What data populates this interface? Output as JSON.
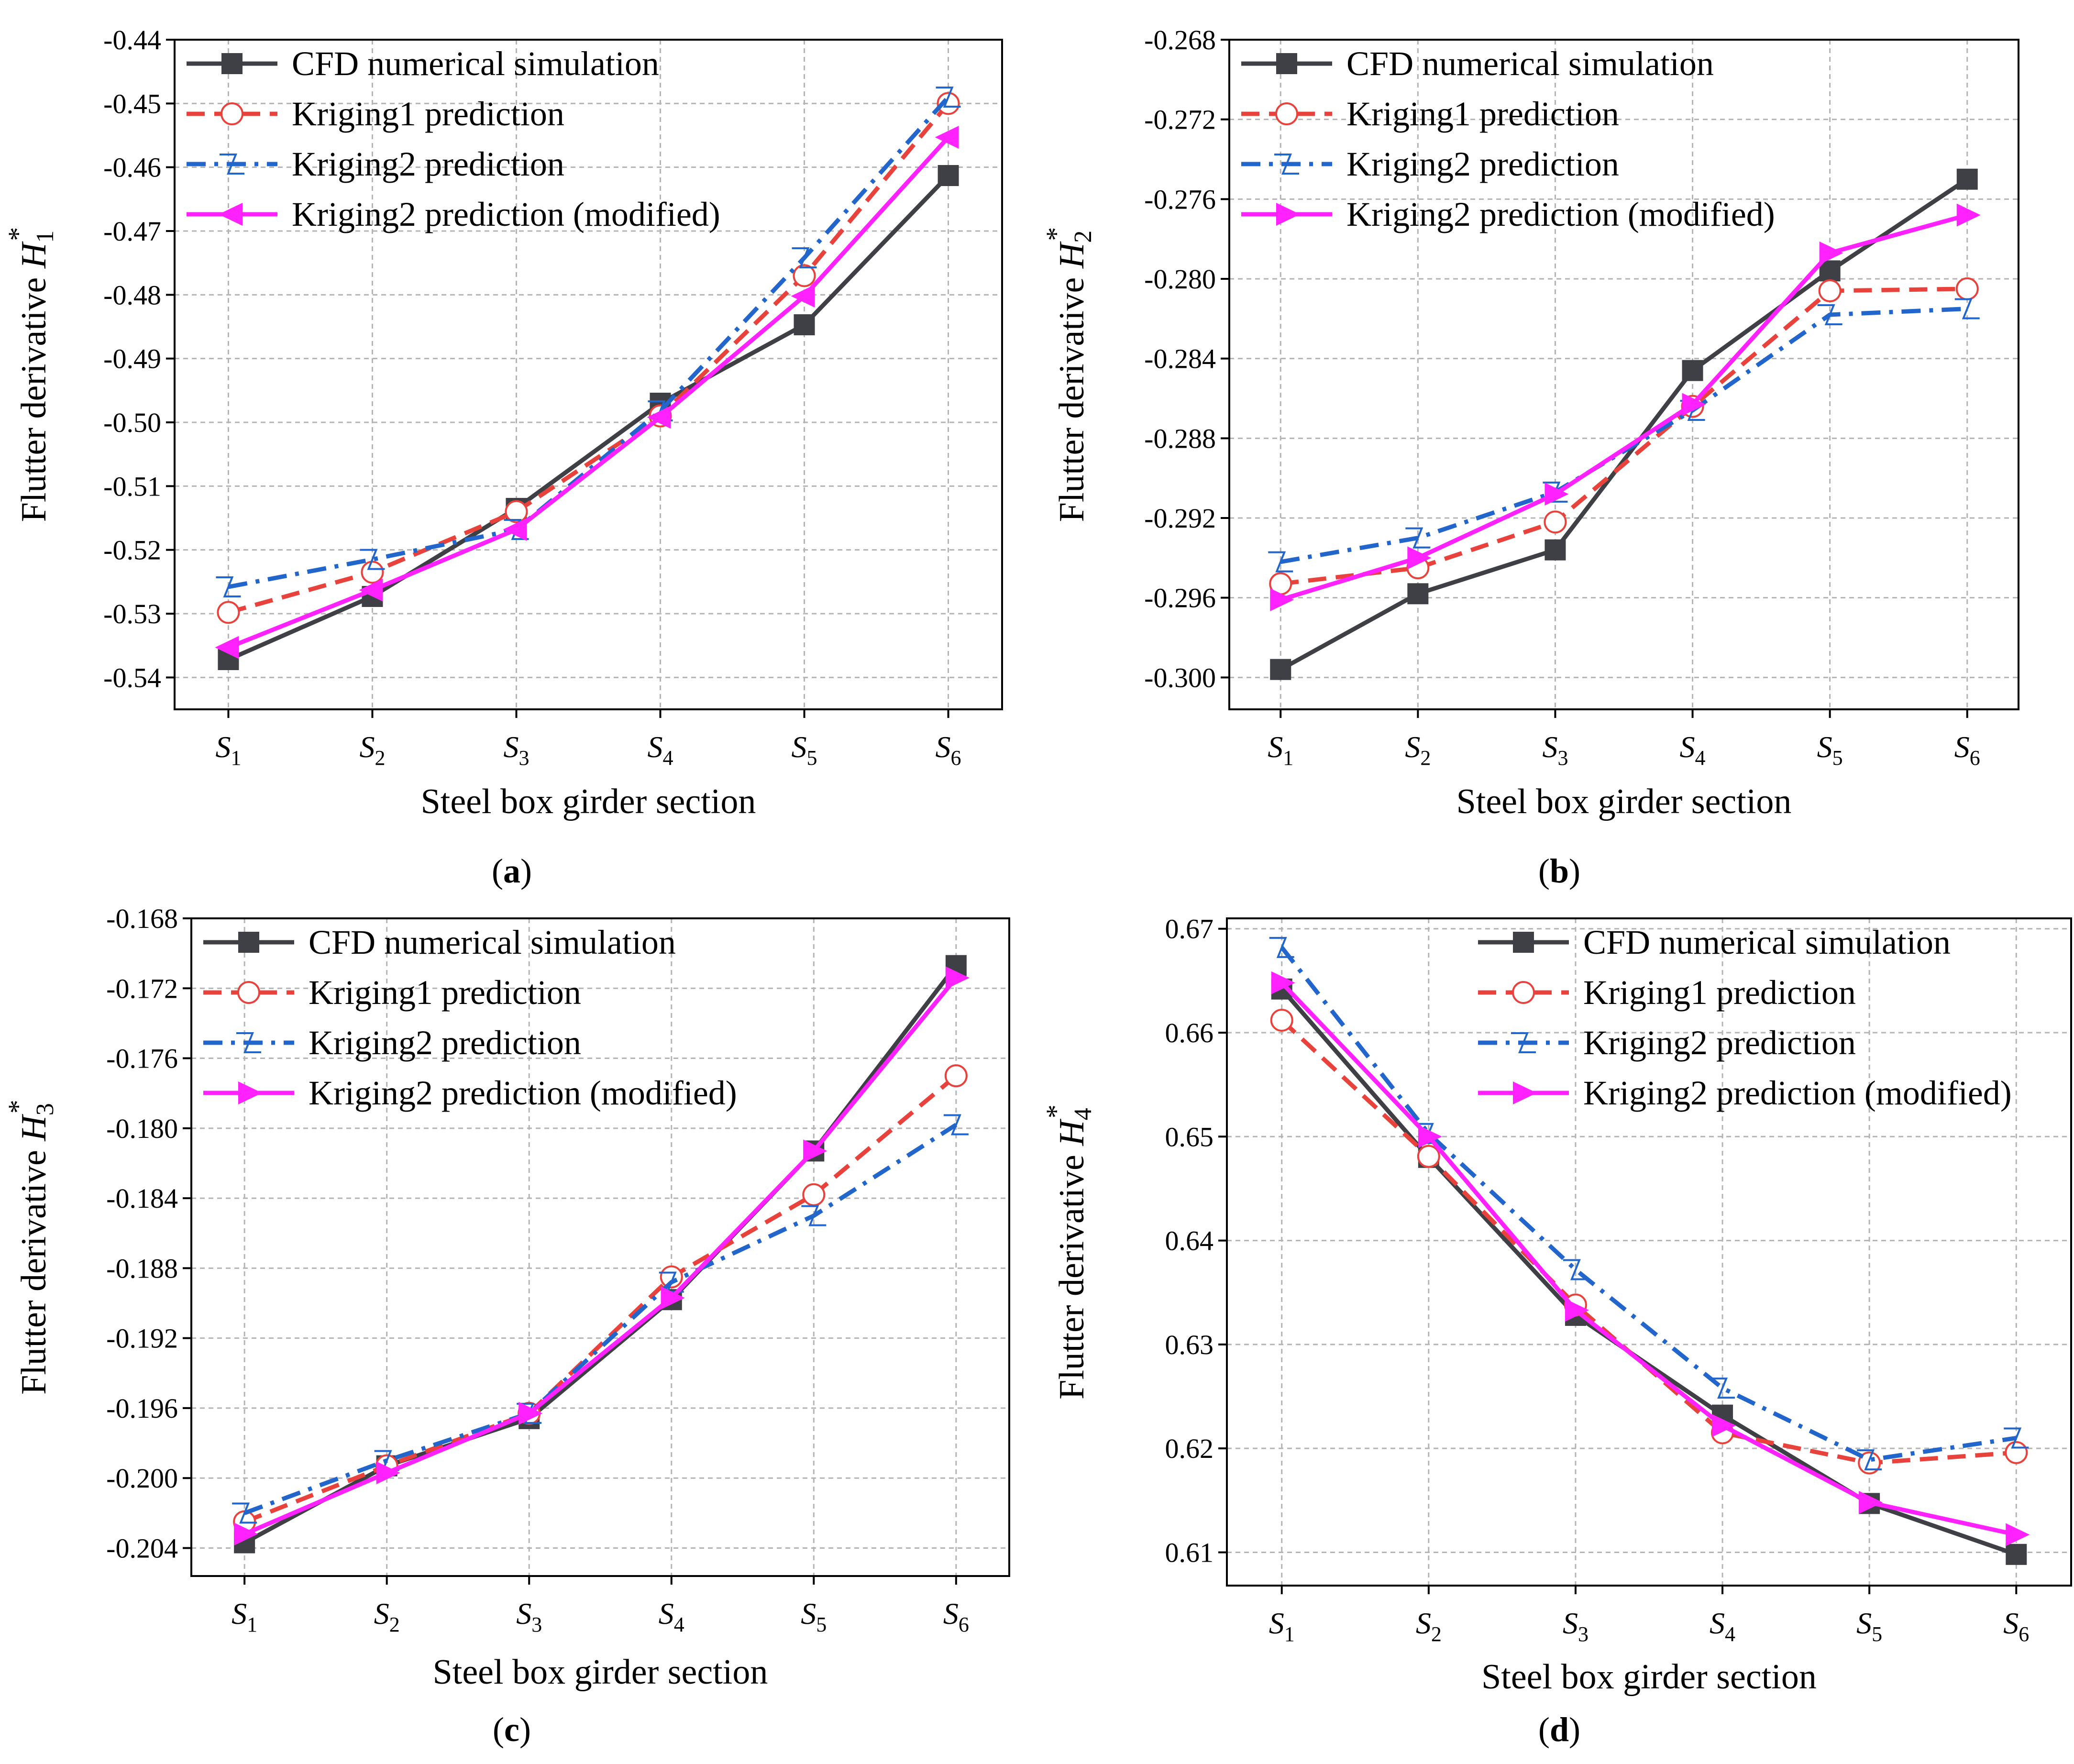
{
  "colors": {
    "cfd": "#3f3f46",
    "kriging1": "#e8423c",
    "kriging2": "#2266cc",
    "modified": "#ff22ff",
    "grid": "#b4b4b4",
    "axis": "#000000"
  },
  "chart_data": [
    {
      "id": "a",
      "type": "line",
      "panel_label": "(a)",
      "panel_letter": "a",
      "xlabel": "Steel box girder section",
      "ylabel_prefix": "Flutter derivative ",
      "ylabel_symbol": "H",
      "ylabel_sub": "1",
      "ylabel_sup": "*",
      "categories": [
        {
          "base": "S",
          "sub": "1"
        },
        {
          "base": "S",
          "sub": "2"
        },
        {
          "base": "S",
          "sub": "3"
        },
        {
          "base": "S",
          "sub": "4"
        },
        {
          "base": "S",
          "sub": "5"
        },
        {
          "base": "S",
          "sub": "6"
        }
      ],
      "ylim": [
        -0.545,
        -0.44
      ],
      "yticks": [
        -0.54,
        -0.53,
        -0.52,
        -0.51,
        -0.5,
        -0.49,
        -0.48,
        -0.47,
        -0.46,
        -0.45,
        -0.44
      ],
      "ytick_labels": [
        "-0.54",
        "-0.53",
        "-0.52",
        "-0.51",
        "-0.50",
        "-0.49",
        "-0.48",
        "-0.47",
        "-0.46",
        "-0.45",
        "-0.44"
      ],
      "grid": true,
      "legend_position": "top-left",
      "series": [
        {
          "key": "cfd",
          "name": "CFD numerical simulation",
          "marker": "square",
          "dash": "solid",
          "values": [
            -0.5372,
            -0.5273,
            -0.5135,
            -0.497,
            -0.4847,
            -0.4613
          ]
        },
        {
          "key": "kriging1",
          "name": "Kriging1 prediction",
          "marker": "circle",
          "dash": "dash",
          "values": [
            -0.5298,
            -0.5235,
            -0.514,
            -0.499,
            -0.477,
            -0.45
          ]
        },
        {
          "key": "kriging2",
          "name": "Kriging2 prediction",
          "marker": "halfarrow",
          "dash": "dashdot",
          "values": [
            -0.5258,
            -0.5215,
            -0.5168,
            -0.4982,
            -0.4742,
            -0.449
          ]
        },
        {
          "key": "modified",
          "name": "Kriging2 prediction (modified)",
          "marker": "left-triangle",
          "dash": "solid",
          "values": [
            -0.5353,
            -0.5263,
            -0.5168,
            -0.4992,
            -0.4802,
            -0.4553
          ]
        }
      ]
    },
    {
      "id": "b",
      "type": "line",
      "panel_label": "(b)",
      "panel_letter": "b",
      "xlabel": "Steel box girder section",
      "ylabel_prefix": "Flutter derivative ",
      "ylabel_symbol": "H",
      "ylabel_sub": "2",
      "ylabel_sup": "*",
      "categories": [
        {
          "base": "S",
          "sub": "1"
        },
        {
          "base": "S",
          "sub": "2"
        },
        {
          "base": "S",
          "sub": "3"
        },
        {
          "base": "S",
          "sub": "4"
        },
        {
          "base": "S",
          "sub": "5"
        },
        {
          "base": "S",
          "sub": "6"
        }
      ],
      "ylim": [
        -0.3016,
        -0.268
      ],
      "yticks": [
        -0.3,
        -0.296,
        -0.292,
        -0.288,
        -0.284,
        -0.28,
        -0.276,
        -0.272,
        -0.268
      ],
      "ytick_labels": [
        "-0.300",
        "-0.296",
        "-0.292",
        "-0.288",
        "-0.284",
        "-0.280",
        "-0.276",
        "-0.272",
        "-0.268"
      ],
      "grid": true,
      "legend_position": "top-left",
      "series": [
        {
          "key": "cfd",
          "name": "CFD numerical simulation",
          "marker": "square",
          "dash": "solid",
          "values": [
            -0.2996,
            -0.2958,
            -0.2936,
            -0.2846,
            -0.2796,
            -0.275
          ]
        },
        {
          "key": "kriging1",
          "name": "Kriging1 prediction",
          "marker": "circle",
          "dash": "dash",
          "values": [
            -0.2953,
            -0.2945,
            -0.2922,
            -0.2864,
            -0.2806,
            -0.2805
          ]
        },
        {
          "key": "kriging2",
          "name": "Kriging2 prediction",
          "marker": "halfarrow",
          "dash": "dashdot",
          "values": [
            -0.2942,
            -0.293,
            -0.2907,
            -0.2866,
            -0.2818,
            -0.2815
          ]
        },
        {
          "key": "modified",
          "name": "Kriging2 prediction (modified)",
          "marker": "right-triangle",
          "dash": "solid",
          "values": [
            -0.2961,
            -0.294,
            -0.2908,
            -0.2863,
            -0.2787,
            -0.2768
          ]
        }
      ]
    },
    {
      "id": "c",
      "type": "line",
      "panel_label": "(c)",
      "panel_letter": "c",
      "xlabel": "Steel box girder section",
      "ylabel_prefix": "Flutter derivative ",
      "ylabel_symbol": "H",
      "ylabel_sub": "3",
      "ylabel_sup": "*",
      "categories": [
        {
          "base": "S",
          "sub": "1"
        },
        {
          "base": "S",
          "sub": "2"
        },
        {
          "base": "S",
          "sub": "3"
        },
        {
          "base": "S",
          "sub": "4"
        },
        {
          "base": "S",
          "sub": "5"
        },
        {
          "base": "S",
          "sub": "6"
        }
      ],
      "ylim": [
        -0.2056,
        -0.168
      ],
      "yticks": [
        -0.204,
        -0.2,
        -0.196,
        -0.192,
        -0.188,
        -0.184,
        -0.18,
        -0.176,
        -0.172,
        -0.168
      ],
      "ytick_labels": [
        "-0.204",
        "-0.200",
        "-0.196",
        "-0.192",
        "-0.188",
        "-0.184",
        "-0.180",
        "-0.176",
        "-0.172",
        "-0.168"
      ],
      "grid": true,
      "legend_position": "top-left",
      "series": [
        {
          "key": "cfd",
          "name": "CFD numerical simulation",
          "marker": "square",
          "dash": "solid",
          "values": [
            -0.2037,
            -0.1993,
            -0.1966,
            -0.1898,
            -0.1813,
            -0.1707
          ]
        },
        {
          "key": "kriging1",
          "name": "Kriging1 prediction",
          "marker": "circle",
          "dash": "dash",
          "values": [
            -0.2025,
            -0.1993,
            -0.1963,
            -0.1885,
            -0.1838,
            -0.177
          ]
        },
        {
          "key": "kriging2",
          "name": "Kriging2 prediction",
          "marker": "halfarrow",
          "dash": "dashdot",
          "values": [
            -0.202,
            -0.199,
            -0.1963,
            -0.1888,
            -0.185,
            -0.1798
          ]
        },
        {
          "key": "modified",
          "name": "Kriging2 prediction (modified)",
          "marker": "right-triangle",
          "dash": "solid",
          "values": [
            -0.2032,
            -0.1997,
            -0.1963,
            -0.1897,
            -0.1813,
            -0.1714
          ]
        }
      ]
    },
    {
      "id": "d",
      "type": "line",
      "panel_label": "(d)",
      "panel_letter": "d",
      "xlabel": "Steel box girder section",
      "ylabel_prefix": "Flutter derivative ",
      "ylabel_symbol": "H",
      "ylabel_sub": "4",
      "ylabel_sup": "*",
      "categories": [
        {
          "base": "S",
          "sub": "1"
        },
        {
          "base": "S",
          "sub": "2"
        },
        {
          "base": "S",
          "sub": "3"
        },
        {
          "base": "S",
          "sub": "4"
        },
        {
          "base": "S",
          "sub": "5"
        },
        {
          "base": "S",
          "sub": "6"
        }
      ],
      "ylim": [
        0.6068,
        0.671
      ],
      "yticks": [
        0.61,
        0.62,
        0.63,
        0.64,
        0.65,
        0.66,
        0.67
      ],
      "ytick_labels": [
        "0.61",
        "0.62",
        "0.63",
        "0.64",
        "0.65",
        "0.66",
        "0.67"
      ],
      "grid": true,
      "legend_position": "top-right",
      "series": [
        {
          "key": "cfd",
          "name": "CFD numerical simulation",
          "marker": "square",
          "dash": "solid",
          "values": [
            0.6642,
            0.648,
            0.6328,
            0.6232,
            0.6147,
            0.6098
          ]
        },
        {
          "key": "kriging1",
          "name": "Kriging1 prediction",
          "marker": "circle",
          "dash": "dash",
          "values": [
            0.6612,
            0.6481,
            0.6338,
            0.6215,
            0.6186,
            0.6196
          ]
        },
        {
          "key": "kriging2",
          "name": "Kriging2 prediction",
          "marker": "halfarrow",
          "dash": "dashdot",
          "values": [
            0.6682,
            0.6503,
            0.6372,
            0.6258,
            0.6189,
            0.621
          ]
        },
        {
          "key": "modified",
          "name": "Kriging2 prediction (modified)",
          "marker": "right-triangle",
          "dash": "solid",
          "values": [
            0.6648,
            0.65,
            0.6333,
            0.6222,
            0.6148,
            0.6117
          ]
        }
      ]
    }
  ]
}
